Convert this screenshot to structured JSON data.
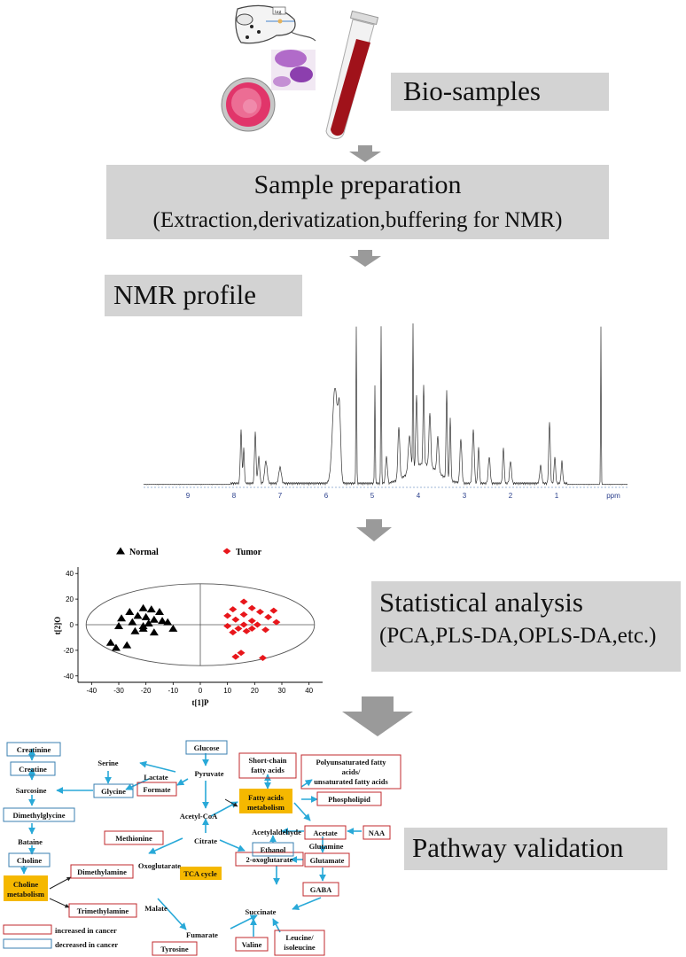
{
  "steps": {
    "biosamples": "Bio-samples",
    "prep_title": "Sample preparation",
    "prep_sub": "(Extraction,derivatization,buffering for NMR)",
    "nmr": "NMR profile",
    "stats_title": "Statistical analysis",
    "stats_sub": "(PCA,PLS-DA,OPLS-DA,etc.)",
    "pathway": "Pathway validation"
  },
  "illustration": {
    "mouse_tag": "tag"
  },
  "nmr_spectrum": {
    "axis_ticks": [
      "9",
      "8",
      "7",
      "6",
      "5",
      "4",
      "3",
      "2",
      "1"
    ],
    "unit": "ppm"
  },
  "chart_data": {
    "type": "scatter",
    "xlabel": "t[1]P",
    "ylabel": "t[2]O",
    "xlim": [
      -45,
      45
    ],
    "ylim": [
      -45,
      45
    ],
    "xticks": [
      -40,
      -30,
      -20,
      -10,
      0,
      10,
      20,
      30,
      40
    ],
    "yticks": [
      40,
      20,
      0,
      -20,
      -40
    ],
    "legend": "top",
    "series": [
      {
        "name": "Normal",
        "color": "#000000",
        "marker": "triangle",
        "points": [
          [
            -21,
            13
          ],
          [
            -26,
            10
          ],
          [
            -18,
            12
          ],
          [
            -15,
            10
          ],
          [
            -23,
            7
          ],
          [
            -29,
            5
          ],
          [
            -20,
            6
          ],
          [
            -17,
            4
          ],
          [
            -25,
            2
          ],
          [
            -14,
            3
          ],
          [
            -30,
            -1
          ],
          [
            -21,
            -1
          ],
          [
            -19,
            1
          ],
          [
            -10,
            -3
          ],
          [
            -24,
            -5
          ],
          [
            -17,
            -6
          ],
          [
            -33,
            -14
          ],
          [
            -27,
            -16
          ],
          [
            -31,
            -18
          ],
          [
            -21,
            -3
          ],
          [
            -12,
            2
          ]
        ]
      },
      {
        "name": "Tumor",
        "color": "#e8161b",
        "marker": "diamond",
        "points": [
          [
            16,
            18
          ],
          [
            12,
            12
          ],
          [
            19,
            13
          ],
          [
            27,
            11
          ],
          [
            22,
            10
          ],
          [
            10,
            7
          ],
          [
            16,
            8
          ],
          [
            25,
            6
          ],
          [
            13,
            4
          ],
          [
            19,
            3
          ],
          [
            28,
            2
          ],
          [
            16,
            0
          ],
          [
            21,
            0
          ],
          [
            10,
            -1
          ],
          [
            19,
            -3
          ],
          [
            14,
            -3
          ],
          [
            24,
            -4
          ],
          [
            17,
            -5
          ],
          [
            12,
            -6
          ],
          [
            15,
            -22
          ],
          [
            23,
            -26
          ],
          [
            13,
            -25
          ]
        ]
      }
    ]
  },
  "pathway_legend": {
    "increased": "increased in cancer",
    "decreased": "decreased in cancer"
  },
  "metabolites": {
    "creatinine": "Creatinine",
    "creatine": "Creatine",
    "sarcosine": "Sarcosine",
    "dimethylglycine": "Dimethylglycine",
    "bataine": "Bataine",
    "choline": "Choline",
    "choline_metabolism": "Choline metabolism",
    "dimethylamine": "Dimethylamine",
    "trimethylamine": "Trimethylamine",
    "serine": "Serine",
    "glycine": "Glycine",
    "glucose": "Glucose",
    "pyruvate": "Pyruvate",
    "lactate": "Lactate",
    "formate": "Formate",
    "acetyl_coa": "Acetyl-CoA",
    "citrate": "Citrate",
    "methionine": "Methionine",
    "oxoglutarate": "Oxoglutarate",
    "malate": "Malate",
    "fumarate": "Fumarate",
    "tyrosine": "Tyrosine",
    "tca_cycle": "TCA cycle",
    "two_oxoglutarate": "2-oxoglutarate",
    "succinate": "Succinate",
    "valine": "Valine",
    "leucine": "Leucine/ isoleucine",
    "short_chain": "Short-chain fatty acids",
    "fatty_acids_metabolism": "Fatty acids metabolism",
    "acetaldehyde": "Acetylaldehyde",
    "ethanol": "Ethanol",
    "acetate": "Acetate",
    "naa": "NAA",
    "glutamine": "Glutamine",
    "glutamate": "Glutamate",
    "gaba": "GABA",
    "polyunsat": "Polyunsaturated fatty acids/ unsaturated fatty acids",
    "phospholipid": "Phospholipid"
  },
  "colors": {
    "increased_border": "#c0282d",
    "decreased_border": "#3a7fb0",
    "arrow": "#29a9d8",
    "highlight": "#f5b800",
    "gray_box": "#d3d3d3",
    "gray_arrow": "#9a9a9a",
    "tumor": "#e8161b"
  }
}
